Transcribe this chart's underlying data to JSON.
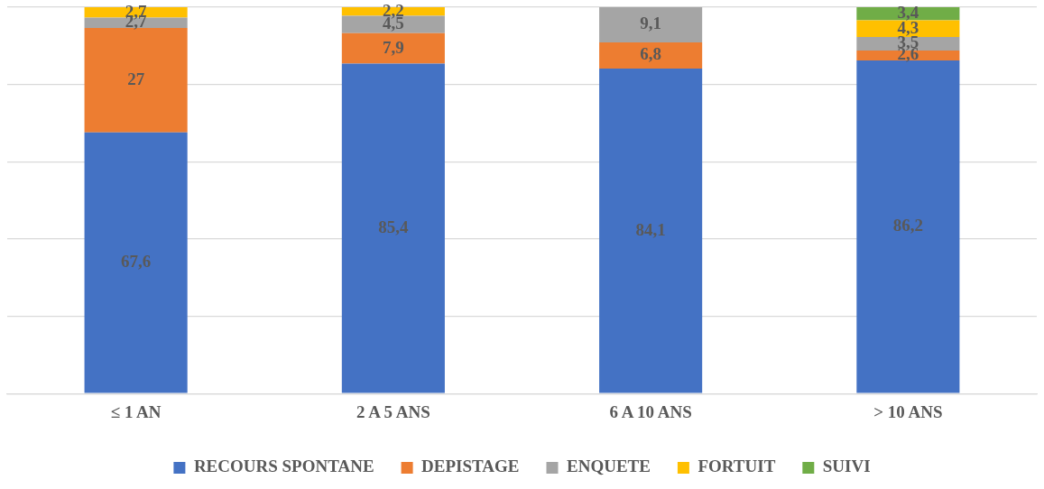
{
  "chart_data": {
    "type": "bar",
    "stacked": true,
    "categories": [
      "≤ 1 AN",
      "2 A 5 ANS",
      "6 A 10 ANS",
      "> 10 ANS"
    ],
    "series": [
      {
        "name": "RECOURS SPONTANE",
        "color": "#4472c4",
        "values": [
          67.6,
          85.4,
          84.1,
          86.2
        ],
        "value_labels": [
          "67,6",
          "85,4",
          "84,1",
          "86,2"
        ]
      },
      {
        "name": "DEPISTAGE",
        "color": "#ed7d31",
        "values": [
          27,
          7.9,
          6.8,
          2.6
        ],
        "value_labels": [
          "27",
          "7,9",
          "6,8",
          "2,6"
        ]
      },
      {
        "name": "ENQUETE",
        "color": "#a5a5a5",
        "values": [
          2.7,
          4.5,
          9.1,
          3.5
        ],
        "value_labels": [
          "2,7",
          "4,5",
          "9,1",
          "3,5"
        ]
      },
      {
        "name": "FORTUIT",
        "color": "#ffc000",
        "values": [
          2.7,
          2.2,
          null,
          4.3
        ],
        "value_labels": [
          "2,7",
          "2,2",
          null,
          "4,3"
        ]
      },
      {
        "name": "SUIVI",
        "color": "#70ad47",
        "values": [
          null,
          null,
          null,
          3.4
        ],
        "value_labels": [
          null,
          null,
          null,
          "3,4"
        ]
      }
    ],
    "ylim": [
      0,
      100
    ],
    "yticks": [
      {
        "value": 0,
        "label": null
      },
      {
        "value": 20,
        "label": null
      },
      {
        "value": 40,
        "label": null
      },
      {
        "value": 60,
        "label": null
      },
      {
        "value": 80,
        "label": null
      },
      {
        "value": 100,
        "label": null
      }
    ],
    "tick_labels": "x",
    "grid": "y",
    "legend": "bottom"
  }
}
